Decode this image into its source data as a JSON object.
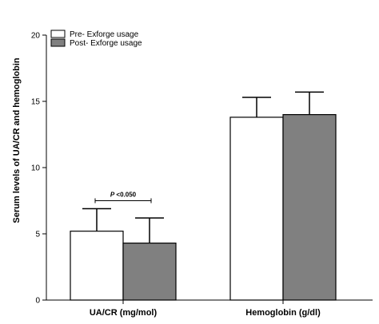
{
  "chart_data": {
    "type": "bar",
    "categories": [
      "UA/CR (mg/mol)",
      "Hemoglobin (g/dl)"
    ],
    "series": [
      {
        "name": "Pre- Exforge usage",
        "values": [
          5.2,
          13.8
        ],
        "errors": [
          1.7,
          1.5
        ],
        "color": "#ffffff"
      },
      {
        "name": "Post- Exforge usage",
        "values": [
          4.3,
          14.0
        ],
        "errors": [
          1.9,
          1.7
        ],
        "color": "#808080"
      }
    ],
    "ylabel": "Serum levels of UA/CR and hemoglobin",
    "xlabel": "",
    "ylim": [
      0,
      20
    ],
    "yticks": [
      0,
      5,
      10,
      15,
      20
    ],
    "grid": false,
    "legend_position": "top-left",
    "annotations": [
      {
        "category_index": 0,
        "p_symbol": "P",
        "text": " <0.050"
      }
    ]
  }
}
